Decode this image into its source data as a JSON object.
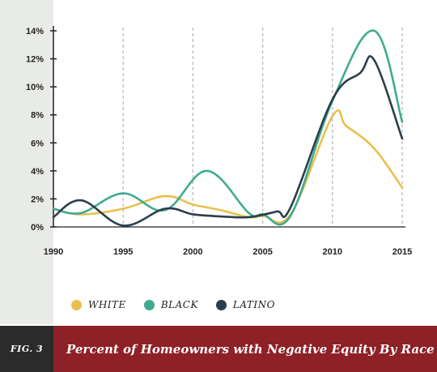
{
  "colors": {
    "white_series": "#e8c04d",
    "black_series": "#3fab90",
    "latino_series": "#2c3e4c",
    "axis": "#222222",
    "grid": "#bbbbbb",
    "caption_bg": "#8e2027",
    "fig_bg": "#2b2b2b"
  },
  "legend": [
    {
      "label": "WHITE",
      "color": "#e8c04d"
    },
    {
      "label": "BLACK",
      "color": "#3fab90"
    },
    {
      "label": "LATINO",
      "color": "#2c3e4c"
    }
  ],
  "caption": {
    "fig_label": "FIG. 3",
    "title": "Percent of Homeowners with Negative Equity By Race"
  },
  "chart_data": {
    "type": "line",
    "title": "Percent of Homeowners with Negative Equity By Race",
    "xlabel": "",
    "ylabel": "",
    "xlim": [
      1990,
      2015
    ],
    "ylim": [
      0,
      14
    ],
    "x_ticks": [
      1990,
      1995,
      2000,
      2005,
      2010,
      2015
    ],
    "y_ticks": [
      0,
      2,
      4,
      6,
      8,
      10,
      12,
      14
    ],
    "y_tick_labels": [
      "0%",
      "2%",
      "4%",
      "6%",
      "8%",
      "10%",
      "12%",
      "14%"
    ],
    "grid": "vertical-dashed",
    "legend_position": "bottom",
    "series": [
      {
        "name": "WHITE",
        "color": "#e8c04d",
        "x": [
          1990,
          1992,
          1995,
          1998,
          2000,
          2002,
          2004,
          2005,
          2007,
          2010,
          2011,
          2013,
          2015
        ],
        "values": [
          1.3,
          0.9,
          1.3,
          2.2,
          1.6,
          1.2,
          0.7,
          0.8,
          0.9,
          7.9,
          7.2,
          5.6,
          2.8
        ]
      },
      {
        "name": "BLACK",
        "color": "#3fab90",
        "x": [
          1990,
          1992,
          1995,
          1998,
          2001,
          2004,
          2005,
          2007,
          2010,
          2013,
          2015
        ],
        "values": [
          1.3,
          1.0,
          2.4,
          1.2,
          4.0,
          1.0,
          0.9,
          0.8,
          9.0,
          14.0,
          7.5
        ]
      },
      {
        "name": "LATINO",
        "color": "#2c3e4c",
        "x": [
          1990,
          1992,
          1995,
          1998,
          2000,
          2002,
          2004,
          2006,
          2007,
          2010,
          2012,
          2013,
          2015
        ],
        "values": [
          0.7,
          1.9,
          0.1,
          1.3,
          0.9,
          0.75,
          0.7,
          1.1,
          1.4,
          9.1,
          11.0,
          11.9,
          6.3
        ]
      }
    ]
  }
}
